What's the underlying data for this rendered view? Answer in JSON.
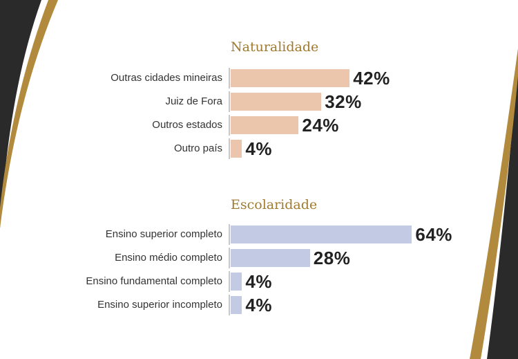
{
  "chart_data": [
    {
      "type": "bar",
      "orientation": "horizontal",
      "title": "Naturalidade",
      "categories": [
        "Outras cidades mineiras",
        "Juiz de Fora",
        "Outros estados",
        "Outro país"
      ],
      "values": [
        42,
        32,
        24,
        4
      ],
      "value_labels": [
        "42%",
        "32%",
        "24%",
        "4%"
      ],
      "unit": "%",
      "color": "#ebc6ad"
    },
    {
      "type": "bar",
      "orientation": "horizontal",
      "title": "Escolaridade",
      "categories": [
        "Ensino superior completo",
        "Ensino médio completo",
        "Ensino fundamental completo",
        "Ensino superior incompleto"
      ],
      "values": [
        64,
        28,
        4,
        4
      ],
      "value_labels": [
        "64%",
        "28%",
        "4%",
        "4%"
      ],
      "unit": "%",
      "color": "#c3cbe4"
    }
  ],
  "decor_colors": {
    "dark": "#2a2a2a",
    "gold": "#b28a3e"
  }
}
